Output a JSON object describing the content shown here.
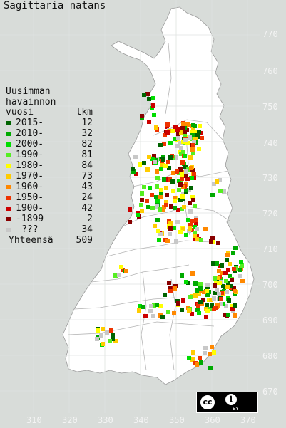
{
  "title": "Sagittaria natans",
  "colors": {
    "background": "#d8dcd9",
    "land": "#ffffff",
    "grid": "#dfe3e0",
    "boundary": "#b4b4b4"
  },
  "y_axis_ticks": [
    "770",
    "760",
    "750",
    "740",
    "730",
    "720",
    "710",
    "700",
    "690",
    "680",
    "670"
  ],
  "x_axis_ticks": [
    "310",
    "320",
    "330",
    "340",
    "350",
    "360",
    "370"
  ],
  "legend": {
    "heading": [
      "Uusimman",
      "havainnon"
    ],
    "col1": "vuosi",
    "col2": "lkm",
    "entries": [
      {
        "label": "2015-",
        "count": "12",
        "color": "#006400"
      },
      {
        "label": "2010-",
        "count": "32",
        "color": "#00aa00"
      },
      {
        "label": "2000-",
        "count": "82",
        "color": "#00dd00"
      },
      {
        "label": "1990-",
        "count": "81",
        "color": "#55ee22"
      },
      {
        "label": "1980-",
        "count": "84",
        "color": "#ffff00"
      },
      {
        "label": "1970-",
        "count": "73",
        "color": "#ffcc00"
      },
      {
        "label": "1960-",
        "count": "43",
        "color": "#ff8800"
      },
      {
        "label": "1950-",
        "count": "24",
        "color": "#ee3300"
      },
      {
        "label": "1900-",
        "count": "42",
        "color": "#cc0000"
      },
      {
        "label": "-1899",
        "count": "2",
        "color": "#880000"
      },
      {
        "label": "???",
        "count": "34",
        "color": "#c8c8c8"
      }
    ],
    "total_label": "Yhteensä",
    "total_count": "509"
  },
  "license_badge": {
    "cc": "cc",
    "by": "BY"
  }
}
